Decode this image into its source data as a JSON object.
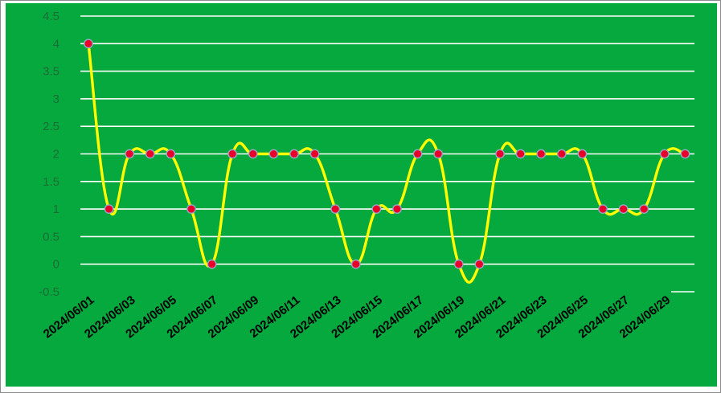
{
  "chart_data": {
    "type": "line",
    "title": "",
    "xlabel": "",
    "ylabel": "",
    "ylim": [
      -0.5,
      4.5
    ],
    "yticks": [
      -0.5,
      0,
      0.5,
      1,
      1.5,
      2,
      2.5,
      3,
      3.5,
      4,
      4.5
    ],
    "ytick_labels": [
      "-0.5",
      "0",
      "0.5",
      "1",
      "1.5",
      "2",
      "2.5",
      "3",
      "3.5",
      "4",
      "4.5"
    ],
    "x": [
      "2024/06/01",
      "2024/06/02",
      "2024/06/03",
      "2024/06/04",
      "2024/06/05",
      "2024/06/06",
      "2024/06/07",
      "2024/06/08",
      "2024/06/09",
      "2024/06/10",
      "2024/06/11",
      "2024/06/12",
      "2024/06/13",
      "2024/06/14",
      "2024/06/15",
      "2024/06/16",
      "2024/06/17",
      "2024/06/18",
      "2024/06/19",
      "2024/06/20",
      "2024/06/21",
      "2024/06/22",
      "2024/06/23",
      "2024/06/24",
      "2024/06/25",
      "2024/06/26",
      "2024/06/27",
      "2024/06/28",
      "2024/06/29",
      "2024/06/30"
    ],
    "xtick_labels": [
      "2024/06/01",
      "2024/06/03",
      "2024/06/05",
      "2024/06/07",
      "2024/06/09",
      "2024/06/11",
      "2024/06/13",
      "2024/06/15",
      "2024/06/17",
      "2024/06/19",
      "2024/06/21",
      "2024/06/23",
      "2024/06/25",
      "2024/06/27",
      "2024/06/29"
    ],
    "series": [
      {
        "values": [
          4,
          1,
          2,
          2,
          2,
          1,
          0,
          2,
          2,
          2,
          2,
          2,
          1,
          0,
          1,
          1,
          2,
          2,
          0,
          0,
          2,
          2,
          2,
          2,
          2,
          1,
          1,
          1,
          2,
          2
        ],
        "line_color": "#ffff00",
        "marker_color": "#e8002a",
        "marker_edge_color": "#9aa6c8",
        "smooth": true
      }
    ],
    "grid": true,
    "background_color": "#05a93e",
    "gridline_color": "#ffffff",
    "legend": "none"
  }
}
